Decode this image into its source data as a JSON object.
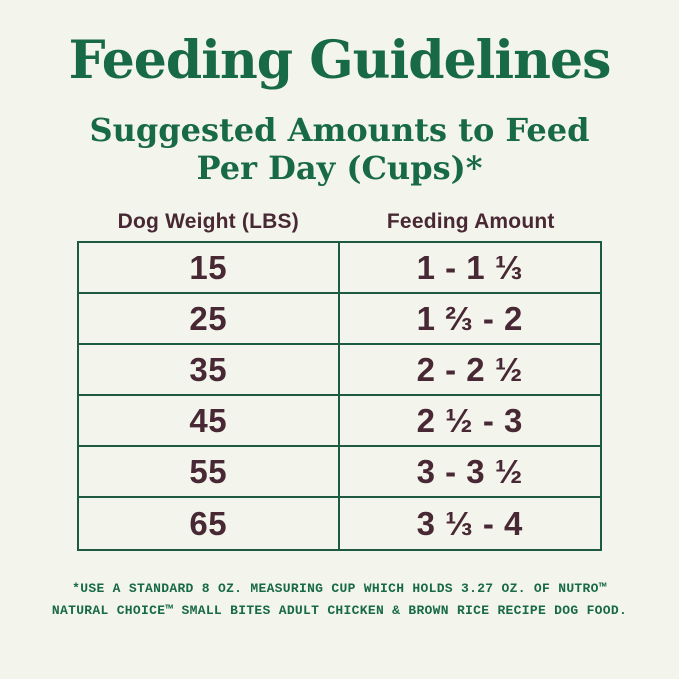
{
  "page": {
    "title": "Feeding Guidelines",
    "subtitle_line1": "Suggested Amounts to Feed",
    "subtitle_line2": "Per Day (Cups)*"
  },
  "table": {
    "headers": {
      "weight": "Dog Weight (LBS)",
      "amount": "Feeding Amount"
    },
    "rows": [
      {
        "weight": "15",
        "amount": "1 - 1 ⅓"
      },
      {
        "weight": "25",
        "amount": "1 ⅔ - 2"
      },
      {
        "weight": "35",
        "amount": "2 - 2 ½"
      },
      {
        "weight": "45",
        "amount": "2 ½ - 3"
      },
      {
        "weight": "55",
        "amount": "3 - 3 ½"
      },
      {
        "weight": "65",
        "amount": "3 ⅓ - 4"
      }
    ]
  },
  "footnote": {
    "line1": "*USE A STANDARD 8 OZ. MEASURING CUP WHICH HOLDS 3.27 OZ. OF NUTRO™",
    "line2": "NATURAL CHOICE™ SMALL BITES ADULT CHICKEN & BROWN RICE RECIPE DOG FOOD."
  },
  "colors": {
    "background": "#f3f5ec",
    "heading_green": "#186945",
    "table_border_green": "#1e5a40",
    "text_maroon": "#482834",
    "footnote_green": "#186945"
  }
}
